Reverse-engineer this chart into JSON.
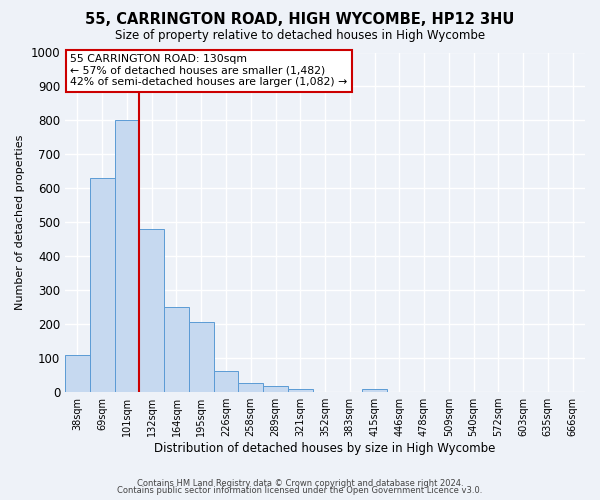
{
  "title": "55, CARRINGTON ROAD, HIGH WYCOMBE, HP12 3HU",
  "subtitle": "Size of property relative to detached houses in High Wycombe",
  "xlabel": "Distribution of detached houses by size in High Wycombe",
  "ylabel": "Number of detached properties",
  "bar_values": [
    110,
    630,
    800,
    480,
    250,
    205,
    63,
    28,
    18,
    10,
    0,
    0,
    10,
    0,
    0,
    0,
    0,
    0,
    0,
    0,
    0
  ],
  "bar_labels": [
    "38sqm",
    "69sqm",
    "101sqm",
    "132sqm",
    "164sqm",
    "195sqm",
    "226sqm",
    "258sqm",
    "289sqm",
    "321sqm",
    "352sqm",
    "383sqm",
    "415sqm",
    "446sqm",
    "478sqm",
    "509sqm",
    "540sqm",
    "572sqm",
    "603sqm",
    "635sqm",
    "666sqm"
  ],
  "bar_color": "#c6d9f0",
  "bar_edge_color": "#5b9bd5",
  "vline_color": "#cc0000",
  "annotation_title": "55 CARRINGTON ROAD: 130sqm",
  "annotation_line1": "← 57% of detached houses are smaller (1,482)",
  "annotation_line2": "42% of semi-detached houses are larger (1,082) →",
  "annotation_box_facecolor": "#ffffff",
  "annotation_box_edgecolor": "#cc0000",
  "ylim": [
    0,
    1000
  ],
  "yticks": [
    0,
    100,
    200,
    300,
    400,
    500,
    600,
    700,
    800,
    900,
    1000
  ],
  "footer1": "Contains HM Land Registry data © Crown copyright and database right 2024.",
  "footer2": "Contains public sector information licensed under the Open Government Licence v3.0.",
  "background_color": "#eef2f8",
  "grid_color": "#ffffff",
  "num_bars": 21
}
